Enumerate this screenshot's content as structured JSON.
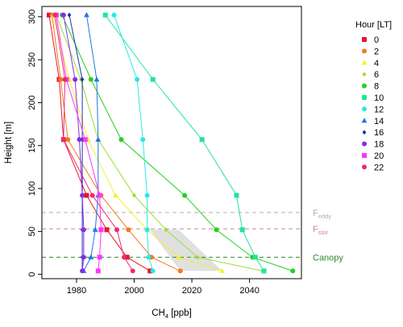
{
  "chart_data": {
    "type": "line",
    "xlabel_main": "CH",
    "xlabel_sub": "4",
    "xlabel_unit": " [ppb]",
    "ylabel": "Height [m]",
    "xlim": [
      1968,
      2058
    ],
    "ylim": [
      -5,
      312
    ],
    "x_ticks": [
      1980,
      2000,
      2020,
      2040
    ],
    "y_ticks": [
      0,
      50,
      100,
      150,
      200,
      250,
      300
    ],
    "grid": false,
    "legend_title": "Hour [LT]",
    "legend_position": "right",
    "heights": [
      4,
      20,
      52,
      92,
      157,
      227,
      302
    ],
    "series": [
      {
        "name": "0",
        "color": "#e4172a",
        "marker": "square",
        "x": [
          2005.5,
          1997.5,
          1990.5,
          1983.5,
          1975.5,
          1974.0,
          1970.5
        ]
      },
      {
        "name": "2",
        "color": "#f07a1c",
        "marker": "circle",
        "x": [
          2016.0,
          2006.0,
          1998.0,
          1988.5,
          1977.0,
          1974.5,
          1971.5
        ]
      },
      {
        "name": "4",
        "color": "#f2f22a",
        "marker": "triangle",
        "x": [
          2030.5,
          2015.5,
          2004.5,
          1993.5,
          1984.0,
          1977.5,
          1972.0
        ]
      },
      {
        "name": "6",
        "color": "#99e02e",
        "marker": "diamond",
        "x": [
          2044.5,
          2022.0,
          2011.0,
          2000.0,
          1987.5,
          1981.5,
          1973.0
        ]
      },
      {
        "name": "8",
        "color": "#21d121",
        "marker": "circle",
        "x": [
          2055.0,
          2041.0,
          2028.5,
          2017.5,
          1995.5,
          1985.0,
          1975.0
        ]
      },
      {
        "name": "10",
        "color": "#20e49b",
        "marker": "square",
        "x": [
          2045.0,
          2042.0,
          2037.5,
          2035.5,
          2023.5,
          2006.5,
          1990.0
        ]
      },
      {
        "name": "12",
        "color": "#2ae8e8",
        "marker": "circle",
        "x": [
          2006.5,
          2005.0,
          2004.5,
          2004.5,
          2003.0,
          2001.0,
          1993.0
        ]
      },
      {
        "name": "14",
        "color": "#1f77e8",
        "marker": "triangle",
        "x": [
          1982.5,
          1985.0,
          1986.5,
          1987.5,
          1987.5,
          1987.0,
          1983.5
        ]
      },
      {
        "name": "16",
        "color": "#1d2fb8",
        "marker": "diamond",
        "x": [
          1982.0,
          1982.0,
          1982.0,
          1982.0,
          1982.0,
          1982.0,
          1977.5
        ]
      },
      {
        "name": "18",
        "color": "#8a2be2",
        "marker": "circle",
        "x": [
          1982.0,
          1982.5,
          1982.5,
          1982.0,
          1981.0,
          1979.5,
          1975.5
        ]
      },
      {
        "name": "20",
        "color": "#ff33ff",
        "marker": "square",
        "x": [
          1987.5,
          1988.0,
          1988.5,
          1988.0,
          1983.0,
          1976.5,
          1973.0
        ]
      },
      {
        "name": "22",
        "color": "#ee2a6e",
        "marker": "circle",
        "x": [
          1999.5,
          1996.5,
          1994.0,
          1985.5,
          1975.5,
          1976.0,
          1972.5
        ]
      }
    ],
    "shaded_region": {
      "color": "#e0e0e0",
      "points": [
        [
          2005.5,
          52
        ],
        [
          2015.5,
          52
        ],
        [
          2030.5,
          4
        ],
        [
          2016.0,
          4
        ]
      ]
    },
    "reference_lines": [
      {
        "y": 72,
        "color": "#b0b0b0",
        "label_main": "F",
        "label_sub": "eddy"
      },
      {
        "y": 53,
        "color": "#c98a8a",
        "label_main": "F",
        "label_sub": "stor"
      },
      {
        "y": 20,
        "color": "#2e8b2e",
        "label_main": "Canopy",
        "label_sub": ""
      }
    ]
  }
}
